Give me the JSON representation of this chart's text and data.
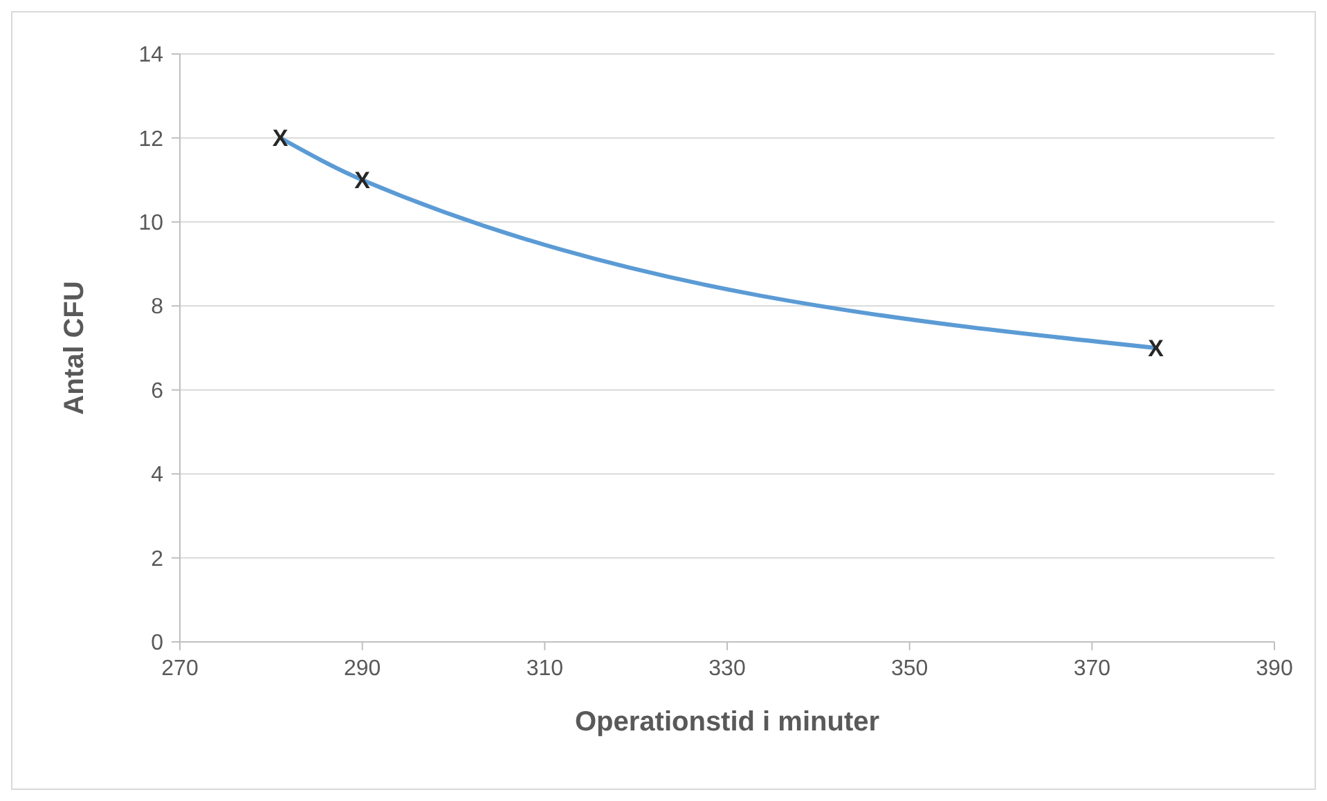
{
  "chart_data": {
    "type": "line",
    "xlabel": "Operationstid i minuter",
    "ylabel": "Antal CFU",
    "x": [
      281,
      290,
      377
    ],
    "series": [
      {
        "color": "#5b9bd5",
        "values": [
          12,
          11,
          7
        ],
        "value_labels": [
          "X",
          "X",
          "X"
        ]
      }
    ],
    "xlim": [
      270,
      390
    ],
    "xticks": [
      270,
      290,
      310,
      330,
      350,
      370,
      390
    ],
    "ylim": [
      0,
      14
    ],
    "yticks": [
      0,
      2,
      4,
      6,
      8,
      10,
      12,
      14
    ],
    "grid": "y",
    "marker": "none",
    "line_style": "solid"
  }
}
